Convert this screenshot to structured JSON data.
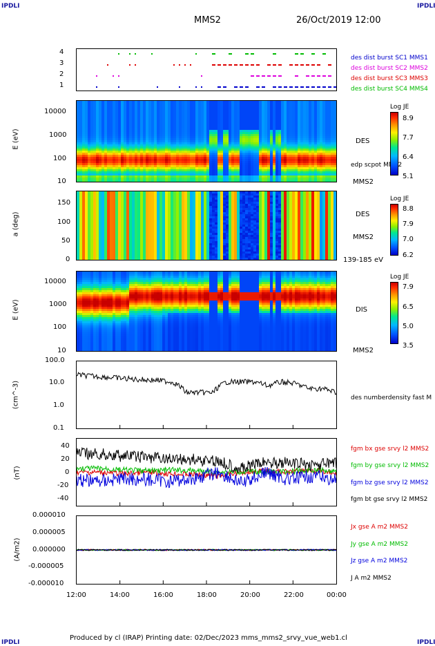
{
  "header": {
    "corner_tl": "IPDLI",
    "corner_tr": "IPDLI",
    "corner_bl": "IPDLI",
    "corner_br": "IPDLI",
    "title": "MMS2",
    "datetime": "26/Oct/2019 12:00"
  },
  "footer": {
    "text": "Produced by cl (IRAP)   Printing date: 02/Dec/2023   mms_mms2_srvy_vue_web1.cl"
  },
  "panel1": {
    "yticks": [
      "4",
      "3",
      "2",
      "1"
    ],
    "legend": [
      {
        "label": "des dist burst SC1 MMS1",
        "color": "#0000cc"
      },
      {
        "label": "des dist burst SC2 MMS2",
        "color": "#dd00dd"
      },
      {
        "label": "des dist burst SC3 MMS3",
        "color": "#dd0000"
      },
      {
        "label": "des dist burst SC4 MMS4",
        "color": "#00bb00"
      }
    ]
  },
  "panel2": {
    "ylabel": "E (eV)",
    "yticks": [
      "10000",
      "1000",
      "100",
      "10"
    ],
    "side_label": "DES",
    "side_note": "edp scpot MMS2",
    "side_bottom": "MMS2",
    "cbar_title": "Log JE",
    "cbar_ticks": [
      "8.9",
      "7.7",
      "6.4",
      "5.1"
    ]
  },
  "panel3": {
    "ylabel": "a (deg)",
    "yticks": [
      "150",
      "100",
      "50",
      "0"
    ],
    "side_label": "DES",
    "side_mid": "MMS2",
    "side_bottom": "139-185 eV",
    "cbar_title": "Log JE",
    "cbar_ticks": [
      "8.8",
      "7.9",
      "7.0",
      "6.2"
    ]
  },
  "panel4": {
    "ylabel": "E (eV)",
    "yticks": [
      "10000",
      "1000",
      "100",
      "10"
    ],
    "side_label": "DIS",
    "side_bottom": "MMS2",
    "cbar_title": "Log JE",
    "cbar_ticks": [
      "7.9",
      "6.5",
      "5.0",
      "3.5"
    ]
  },
  "panel5": {
    "ylabel": "(cm^-3)",
    "yticks": [
      "100.0",
      "10.0",
      "1.0",
      "0.1"
    ],
    "legend": "des numberdensity fast M"
  },
  "panel6": {
    "ylabel": "(nT)",
    "yticks": [
      "40",
      "20",
      "0",
      "-20",
      "-40"
    ],
    "legend": [
      {
        "label": "fgm bx gse srvy l2 MMS2",
        "color": "#dd0000"
      },
      {
        "label": "fgm by gse srvy l2 MMS2",
        "color": "#00bb00"
      },
      {
        "label": "fgm bz gse srvy l2 MMS2",
        "color": "#0000dd"
      },
      {
        "label": "fgm bt gse srvy l2 MMS2",
        "color": "#000000"
      }
    ]
  },
  "panel7": {
    "ylabel": "(A/m2)",
    "yticks": [
      "0.000010",
      "0.000005",
      "0.000000",
      "-0.000005",
      "-0.000010"
    ],
    "legend": [
      {
        "label": "Jx gse A m2 MMS2",
        "color": "#dd0000"
      },
      {
        "label": "Jy gse A m2 MMS2",
        "color": "#00bb00"
      },
      {
        "label": "Jz gse A m2 MMS2",
        "color": "#0000dd"
      },
      {
        "label": "J A m2 MMS2",
        "color": "#000000"
      }
    ]
  },
  "xaxis": {
    "ticks": [
      "12:00",
      "14:00",
      "16:00",
      "18:00",
      "20:00",
      "22:00",
      "00:00"
    ]
  },
  "chart_data": [
    {
      "type": "scatter",
      "series": [
        {
          "name": "des dist burst SC1 MMS1",
          "y": 1
        },
        {
          "name": "des dist burst SC2 MMS2",
          "y": 2
        },
        {
          "name": "des dist burst SC3 MMS3",
          "y": 3
        },
        {
          "name": "des dist burst SC4 MMS4",
          "y": 4
        }
      ],
      "ylim": [
        0.5,
        4.5
      ]
    },
    {
      "type": "heatmap",
      "ylabel": "E (eV)",
      "yscale": "log",
      "ylim": [
        10,
        30000
      ],
      "colorbar": "Log JE",
      "clim": [
        5.1,
        8.9
      ]
    },
    {
      "type": "heatmap",
      "ylabel": "a (deg)",
      "ylim": [
        0,
        180
      ],
      "colorbar": "Log JE",
      "clim": [
        6.2,
        8.8
      ]
    },
    {
      "type": "heatmap",
      "ylabel": "E (eV)",
      "yscale": "log",
      "ylim": [
        10,
        30000
      ],
      "colorbar": "Log JE",
      "clim": [
        3.5,
        7.9
      ]
    },
    {
      "type": "line",
      "ylabel": "(cm^-3)",
      "yscale": "log",
      "ylim": [
        0.1,
        100
      ],
      "series": [
        {
          "name": "des numberdensity fast M",
          "x": [
            "12:00",
            "13:00",
            "14:00",
            "15:00",
            "16:00",
            "17:00",
            "17:30",
            "18:00",
            "18:30",
            "19:00",
            "19:30",
            "20:00",
            "20:30",
            "21:00",
            "21:30",
            "22:00",
            "22:30",
            "23:00",
            "23:30",
            "00:00"
          ],
          "values": [
            25,
            22,
            20,
            18,
            16,
            15,
            14,
            12,
            4,
            4,
            4,
            12,
            12,
            12,
            8,
            12,
            10,
            6,
            6,
            4
          ]
        }
      ]
    },
    {
      "type": "line",
      "ylabel": "(nT)",
      "ylim": [
        -45,
        45
      ],
      "series": [
        {
          "name": "fgm bx gse srvy l2 MMS2",
          "values": [
            0,
            0,
            -2,
            0,
            -2,
            -3,
            -5,
            0,
            2,
            0,
            3,
            -3
          ]
        },
        {
          "name": "fgm by gse srvy l2 MMS2",
          "values": [
            5,
            5,
            3,
            2,
            3,
            2,
            0,
            1,
            0,
            1,
            3,
            2
          ]
        },
        {
          "name": "fgm bz gse srvy l2 MMS2",
          "values": [
            -10,
            -12,
            -8,
            -10,
            -12,
            -8,
            0,
            -15,
            0,
            -10,
            -5,
            -10
          ]
        },
        {
          "name": "fgm bt gse srvy l2 MMS2",
          "values": [
            25,
            24,
            22,
            20,
            18,
            17,
            15,
            5,
            14,
            12,
            10,
            12
          ]
        }
      ]
    },
    {
      "type": "line",
      "ylabel": "(A/m2)",
      "ylim": [
        -1e-05,
        1e-05
      ],
      "series": [
        {
          "name": "Jx gse A m2 MMS2",
          "values": [
            0,
            0,
            0,
            0,
            0,
            0,
            0,
            0,
            0,
            0,
            0,
            0
          ]
        },
        {
          "name": "Jy gse A m2 MMS2",
          "values": [
            0,
            0,
            0,
            0,
            0,
            0,
            0,
            0,
            0,
            0,
            0,
            0
          ]
        },
        {
          "name": "Jz gse A m2 MMS2",
          "values": [
            0,
            0,
            0,
            0,
            0,
            0,
            0,
            0,
            0,
            0,
            0,
            0
          ]
        },
        {
          "name": "J A m2 MMS2",
          "values": [
            0,
            0,
            0,
            0,
            0,
            0,
            0,
            0,
            0,
            0,
            0,
            0
          ]
        }
      ]
    }
  ]
}
